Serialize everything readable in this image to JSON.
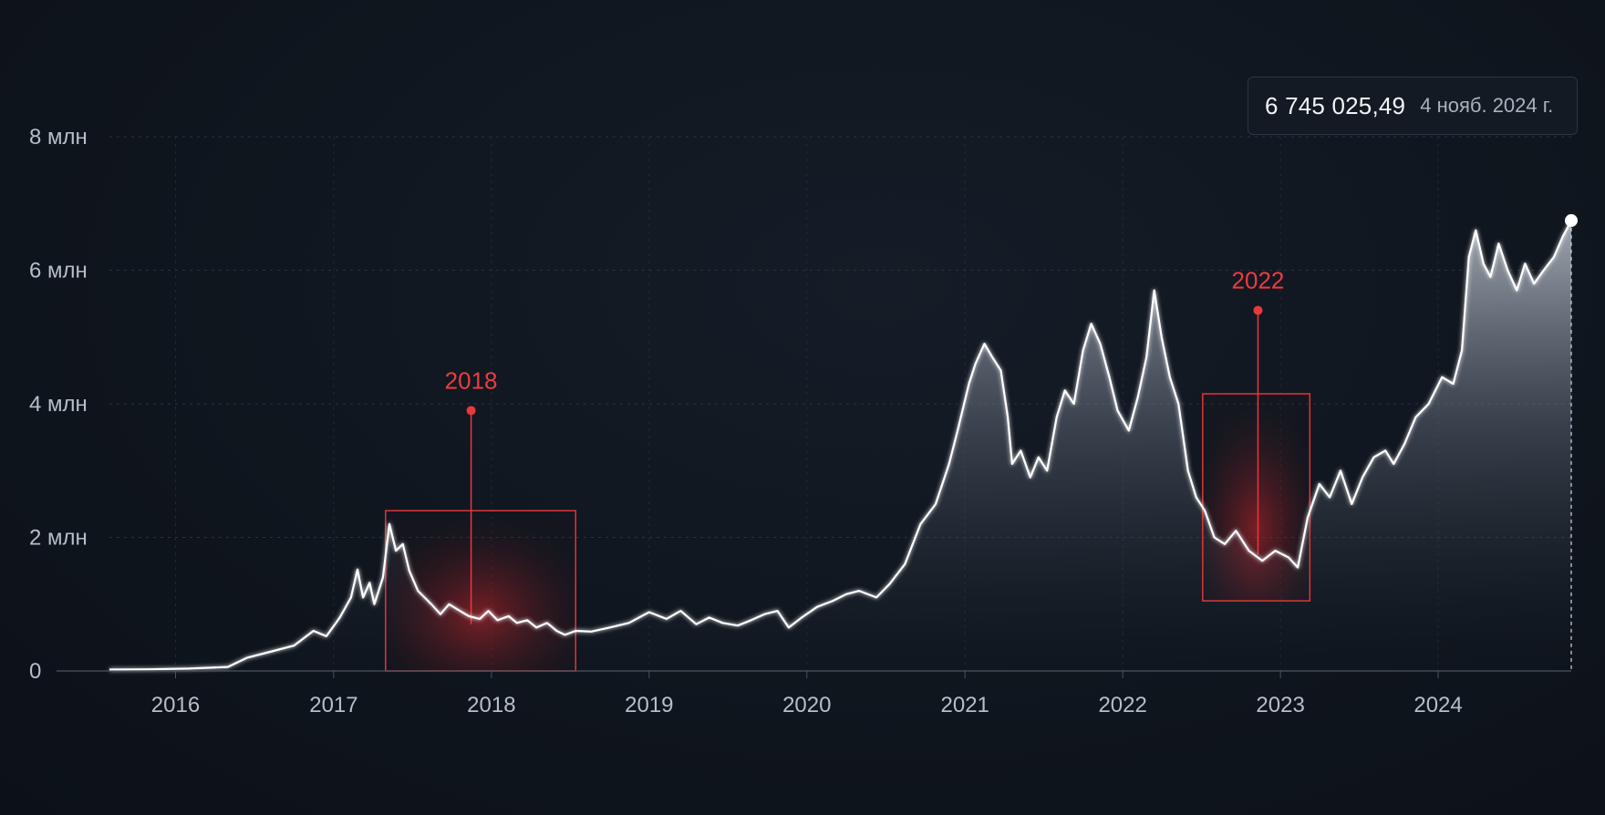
{
  "tooltip": {
    "value": "6 745 025,49",
    "date": "4 нояб. 2024 г."
  },
  "colors": {
    "background": "#0f151d",
    "line": "#ffffff",
    "grid": "#2a323d",
    "highlight": "#e8383c",
    "tick_text": "#b7bec8"
  },
  "chart_data": {
    "type": "area",
    "title": "",
    "xlabel": "",
    "ylabel": "",
    "ylim": [
      0,
      8000000
    ],
    "xlim": [
      "2015-08-01",
      "2024-11-04"
    ],
    "y_ticks": [
      {
        "value": 0,
        "label": "0"
      },
      {
        "value": 2000000,
        "label": "2 млн"
      },
      {
        "value": 4000000,
        "label": "4 млн"
      },
      {
        "value": 6000000,
        "label": "6 млн"
      },
      {
        "value": 8000000,
        "label": "8 млн"
      }
    ],
    "x_ticks": [
      {
        "date": "2016-01-01",
        "label": "2016"
      },
      {
        "date": "2017-01-01",
        "label": "2017"
      },
      {
        "date": "2018-01-01",
        "label": "2018"
      },
      {
        "date": "2019-01-01",
        "label": "2019"
      },
      {
        "date": "2020-01-01",
        "label": "2020"
      },
      {
        "date": "2021-01-01",
        "label": "2021"
      },
      {
        "date": "2022-01-01",
        "label": "2022"
      },
      {
        "date": "2023-01-01",
        "label": "2023"
      },
      {
        "date": "2024-01-01",
        "label": "2024"
      }
    ],
    "grid": true,
    "legend": "none",
    "series": [
      {
        "points": [
          [
            "2015-08-01",
            20000
          ],
          [
            "2015-11-01",
            25000
          ],
          [
            "2016-02-01",
            35000
          ],
          [
            "2016-05-01",
            60000
          ],
          [
            "2016-06-15",
            200000
          ],
          [
            "2016-08-15",
            300000
          ],
          [
            "2016-10-01",
            380000
          ],
          [
            "2016-11-15",
            600000
          ],
          [
            "2016-12-15",
            520000
          ],
          [
            "2017-01-15",
            800000
          ],
          [
            "2017-02-10",
            1100000
          ],
          [
            "2017-02-25",
            1520000
          ],
          [
            "2017-03-10",
            1100000
          ],
          [
            "2017-03-25",
            1320000
          ],
          [
            "2017-04-05",
            1000000
          ],
          [
            "2017-04-25",
            1400000
          ],
          [
            "2017-05-10",
            2200000
          ],
          [
            "2017-05-25",
            1800000
          ],
          [
            "2017-06-10",
            1900000
          ],
          [
            "2017-06-25",
            1500000
          ],
          [
            "2017-07-15",
            1200000
          ],
          [
            "2017-08-15",
            1000000
          ],
          [
            "2017-09-05",
            850000
          ],
          [
            "2017-09-25",
            1000000
          ],
          [
            "2017-10-20",
            900000
          ],
          [
            "2017-11-10",
            820000
          ],
          [
            "2017-12-05",
            780000
          ],
          [
            "2017-12-25",
            900000
          ],
          [
            "2018-01-15",
            760000
          ],
          [
            "2018-02-10",
            820000
          ],
          [
            "2018-03-01",
            720000
          ],
          [
            "2018-03-25",
            760000
          ],
          [
            "2018-04-15",
            650000
          ],
          [
            "2018-05-10",
            720000
          ],
          [
            "2018-06-01",
            600000
          ],
          [
            "2018-06-20",
            540000
          ],
          [
            "2018-07-15",
            600000
          ],
          [
            "2018-08-20",
            590000
          ],
          [
            "2018-10-01",
            650000
          ],
          [
            "2018-11-15",
            720000
          ],
          [
            "2019-01-01",
            880000
          ],
          [
            "2019-02-10",
            780000
          ],
          [
            "2019-03-15",
            900000
          ],
          [
            "2019-04-20",
            700000
          ],
          [
            "2019-05-20",
            800000
          ],
          [
            "2019-06-20",
            720000
          ],
          [
            "2019-07-25",
            680000
          ],
          [
            "2019-08-25",
            760000
          ],
          [
            "2019-09-25",
            850000
          ],
          [
            "2019-10-25",
            900000
          ],
          [
            "2019-11-20",
            650000
          ],
          [
            "2019-12-20",
            800000
          ],
          [
            "2020-01-25",
            960000
          ],
          [
            "2020-03-01",
            1050000
          ],
          [
            "2020-04-01",
            1150000
          ],
          [
            "2020-05-01",
            1200000
          ],
          [
            "2020-06-10",
            1100000
          ],
          [
            "2020-07-10",
            1300000
          ],
          [
            "2020-08-15",
            1600000
          ],
          [
            "2020-09-20",
            2200000
          ],
          [
            "2020-10-25",
            2500000
          ],
          [
            "2020-11-25",
            3100000
          ],
          [
            "2020-12-15",
            3600000
          ],
          [
            "2021-01-10",
            4300000
          ],
          [
            "2021-01-25",
            4600000
          ],
          [
            "2021-02-15",
            4900000
          ],
          [
            "2021-03-05",
            4700000
          ],
          [
            "2021-03-25",
            4500000
          ],
          [
            "2021-04-10",
            3800000
          ],
          [
            "2021-04-20",
            3100000
          ],
          [
            "2021-05-10",
            3300000
          ],
          [
            "2021-06-01",
            2900000
          ],
          [
            "2021-06-20",
            3200000
          ],
          [
            "2021-07-10",
            3000000
          ],
          [
            "2021-08-01",
            3800000
          ],
          [
            "2021-08-20",
            4200000
          ],
          [
            "2021-09-10",
            4000000
          ],
          [
            "2021-10-01",
            4800000
          ],
          [
            "2021-10-20",
            5200000
          ],
          [
            "2021-11-10",
            4900000
          ],
          [
            "2021-12-01",
            4400000
          ],
          [
            "2021-12-20",
            3900000
          ],
          [
            "2022-01-15",
            3600000
          ],
          [
            "2022-02-05",
            4100000
          ],
          [
            "2022-02-25",
            4700000
          ],
          [
            "2022-03-15",
            5700000
          ],
          [
            "2022-04-01",
            5000000
          ],
          [
            "2022-04-20",
            4400000
          ],
          [
            "2022-05-10",
            4000000
          ],
          [
            "2022-06-01",
            3000000
          ],
          [
            "2022-06-20",
            2600000
          ],
          [
            "2022-07-10",
            2400000
          ],
          [
            "2022-08-01",
            2000000
          ],
          [
            "2022-08-25",
            1900000
          ],
          [
            "2022-09-20",
            2100000
          ],
          [
            "2022-10-20",
            1800000
          ],
          [
            "2022-11-20",
            1650000
          ],
          [
            "2022-12-20",
            1800000
          ],
          [
            "2023-01-20",
            1700000
          ],
          [
            "2023-02-10",
            1550000
          ],
          [
            "2023-03-05",
            2300000
          ],
          [
            "2023-04-01",
            2800000
          ],
          [
            "2023-04-25",
            2600000
          ],
          [
            "2023-05-20",
            3000000
          ],
          [
            "2023-06-15",
            2500000
          ],
          [
            "2023-07-10",
            2900000
          ],
          [
            "2023-08-05",
            3200000
          ],
          [
            "2023-09-01",
            3300000
          ],
          [
            "2023-09-20",
            3100000
          ],
          [
            "2023-10-15",
            3400000
          ],
          [
            "2023-11-10",
            3800000
          ],
          [
            "2023-12-10",
            4000000
          ],
          [
            "2024-01-10",
            4400000
          ],
          [
            "2024-02-05",
            4300000
          ],
          [
            "2024-02-25",
            4800000
          ],
          [
            "2024-03-12",
            6200000
          ],
          [
            "2024-03-28",
            6600000
          ],
          [
            "2024-04-15",
            6100000
          ],
          [
            "2024-05-01",
            5900000
          ],
          [
            "2024-05-20",
            6400000
          ],
          [
            "2024-06-10",
            6000000
          ],
          [
            "2024-07-01",
            5700000
          ],
          [
            "2024-07-20",
            6100000
          ],
          [
            "2024-08-10",
            5800000
          ],
          [
            "2024-09-01",
            6000000
          ],
          [
            "2024-09-25",
            6200000
          ],
          [
            "2024-10-15",
            6500000
          ],
          [
            "2024-11-04",
            6745025.49
          ]
        ]
      }
    ],
    "annotations": [
      {
        "label": "2018",
        "region": {
          "x_start": "2017-05-01",
          "x_end": "2018-07-15",
          "y_start": 0,
          "y_end": 2400000
        },
        "marker": {
          "x": "2017-11-15",
          "y": 3900000
        },
        "line_to_y": 700000
      },
      {
        "label": "2022",
        "region": {
          "x_start": "2022-07-05",
          "x_end": "2023-03-10",
          "y_start": 1050000,
          "y_end": 4150000
        },
        "marker": {
          "x": "2022-11-10",
          "y": 5400000
        },
        "line_to_y": 1750000
      }
    ],
    "endpoint": {
      "x": "2024-11-04",
      "y": 6745025.49
    }
  }
}
